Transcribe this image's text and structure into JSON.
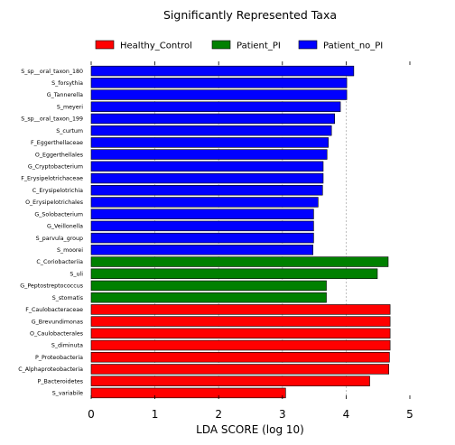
{
  "chart_data": {
    "type": "bar",
    "orientation": "horizontal",
    "title": "Significantly Represented Taxa",
    "xlabel": "LDA SCORE (log 10)",
    "ylabel": "",
    "xlim": [
      0,
      5
    ],
    "xticks": [
      "0",
      "1",
      "2",
      "3",
      "4",
      "5"
    ],
    "grid": "x-dashed",
    "legend_position": "top",
    "groups": [
      {
        "name": "Healthy_Control",
        "color": "#ff0000"
      },
      {
        "name": "Patient_PI",
        "color": "#008000"
      },
      {
        "name": "Patient_no_PI",
        "color": "#0000ff"
      }
    ],
    "bars": [
      {
        "label": "S_sp__oral_taxon_180",
        "value": 4.12,
        "group": "Patient_no_PI"
      },
      {
        "label": "S_forsythia",
        "value": 4.01,
        "group": "Patient_no_PI"
      },
      {
        "label": "G_Tannerella",
        "value": 4.01,
        "group": "Patient_no_PI"
      },
      {
        "label": "S_meyeri",
        "value": 3.91,
        "group": "Patient_no_PI"
      },
      {
        "label": "S_sp__oral_taxon_199",
        "value": 3.82,
        "group": "Patient_no_PI"
      },
      {
        "label": "S_curtum",
        "value": 3.77,
        "group": "Patient_no_PI"
      },
      {
        "label": "F_Eggerthellaceae",
        "value": 3.72,
        "group": "Patient_no_PI"
      },
      {
        "label": "O_Eggerthellales",
        "value": 3.7,
        "group": "Patient_no_PI"
      },
      {
        "label": "G_Cryptobacterium",
        "value": 3.64,
        "group": "Patient_no_PI"
      },
      {
        "label": "F_Erysipelotrichaceae",
        "value": 3.64,
        "group": "Patient_no_PI"
      },
      {
        "label": "C_Erysipelotrichia",
        "value": 3.63,
        "group": "Patient_no_PI"
      },
      {
        "label": "O_Erysipelotrichales",
        "value": 3.56,
        "group": "Patient_no_PI"
      },
      {
        "label": "G_Solobacterium",
        "value": 3.49,
        "group": "Patient_no_PI"
      },
      {
        "label": "G_Veillonella",
        "value": 3.49,
        "group": "Patient_no_PI"
      },
      {
        "label": "S_parvula_group",
        "value": 3.49,
        "group": "Patient_no_PI"
      },
      {
        "label": "S_moorei",
        "value": 3.48,
        "group": "Patient_no_PI"
      },
      {
        "label": "C_Coriobacteriia",
        "value": 4.66,
        "group": "Patient_PI"
      },
      {
        "label": "S_uli",
        "value": 4.49,
        "group": "Patient_PI"
      },
      {
        "label": "G_Peptostreptococcus",
        "value": 3.69,
        "group": "Patient_PI"
      },
      {
        "label": "S_stomatis",
        "value": 3.69,
        "group": "Patient_PI"
      },
      {
        "label": "F_Caulobacteraceae",
        "value": 4.69,
        "group": "Healthy_Control"
      },
      {
        "label": "G_Brevundimonas",
        "value": 4.69,
        "group": "Healthy_Control"
      },
      {
        "label": "O_Caulobacterales",
        "value": 4.69,
        "group": "Healthy_Control"
      },
      {
        "label": "S_diminuta",
        "value": 4.69,
        "group": "Healthy_Control"
      },
      {
        "label": "P_Proteobacteria",
        "value": 4.68,
        "group": "Healthy_Control"
      },
      {
        "label": "C_Alphaproteobacteria",
        "value": 4.67,
        "group": "Healthy_Control"
      },
      {
        "label": "P_Bacteroidetes",
        "value": 4.37,
        "group": "Healthy_Control"
      },
      {
        "label": "S_variabile",
        "value": 3.05,
        "group": "Healthy_Control"
      }
    ]
  }
}
